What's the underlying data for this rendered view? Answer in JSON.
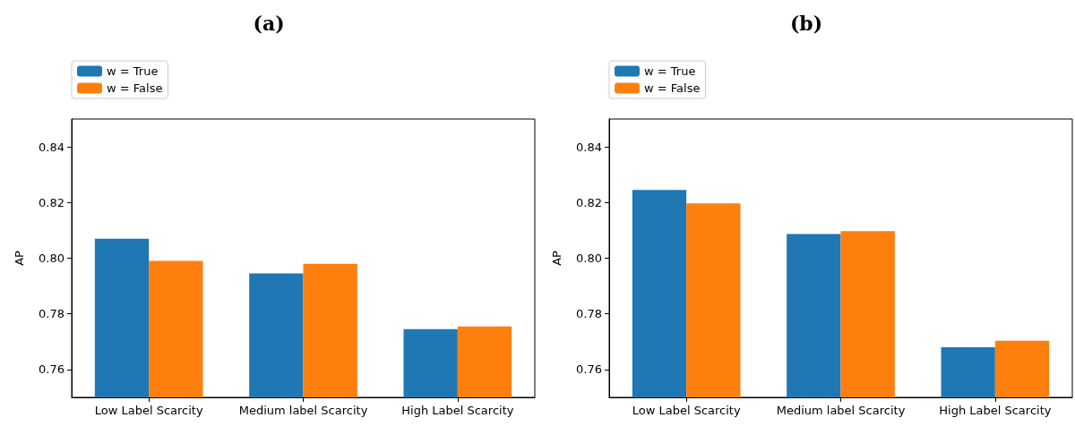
{
  "chart_data": [
    {
      "type": "bar",
      "title": "(a)",
      "ylabel": "AP",
      "categories": [
        "Low Label Scarcity",
        "Medium label Scarcity",
        "High Label Scarcity"
      ],
      "series": [
        {
          "name": "w = True",
          "color": "#1f77b4",
          "values": [
            0.807,
            0.7945,
            0.7745
          ]
        },
        {
          "name": "w = False",
          "color": "#ff7f0e",
          "values": [
            0.799,
            0.798,
            0.7755
          ]
        }
      ],
      "ylim": [
        0.75,
        0.85
      ],
      "yticks": [
        0.76,
        0.78,
        {
          "value": 0.8,
          "label": "0.80"
        },
        0.82,
        0.84
      ],
      "grid": false,
      "legend": "top left"
    },
    {
      "type": "bar",
      "title": "(b)",
      "ylabel": "AP",
      "categories": [
        "Low Label Scarcity",
        "Medium label Scarcity",
        "High Label Scarcity"
      ],
      "series": [
        {
          "name": "w = True",
          "color": "#1f77b4",
          "values": [
            0.8245,
            0.8087,
            0.768
          ]
        },
        {
          "name": "w = False",
          "color": "#ff7f0e",
          "values": [
            0.8197,
            0.8097,
            0.7703
          ]
        }
      ],
      "ylim": [
        0.75,
        0.85
      ],
      "yticks": [
        0.76,
        0.78,
        {
          "value": 0.8,
          "label": "0.80"
        },
        0.82,
        0.84
      ],
      "grid": false,
      "legend": "top left"
    }
  ]
}
